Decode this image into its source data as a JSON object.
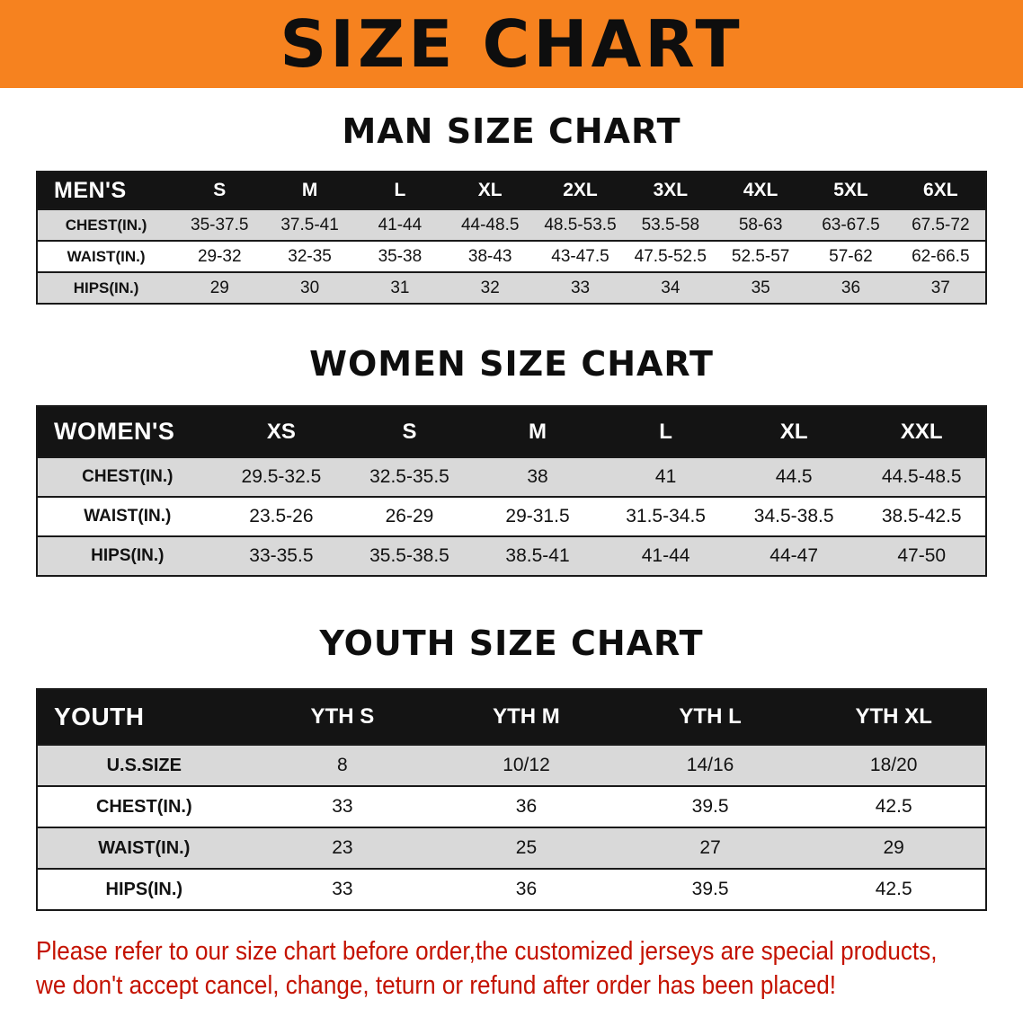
{
  "banner": {
    "title": "SIZE CHART"
  },
  "sections": [
    {
      "id": "men",
      "heading": "MAN SIZE CHART",
      "table": {
        "header": [
          "MEN'S",
          "S",
          "M",
          "L",
          "XL",
          "2XL",
          "3XL",
          "4XL",
          "5XL",
          "6XL"
        ],
        "rows": [
          [
            "CHEST(IN.)",
            "35-37.5",
            "37.5-41",
            "41-44",
            "44-48.5",
            "48.5-53.5",
            "53.5-58",
            "58-63",
            "63-67.5",
            "67.5-72"
          ],
          [
            "WAIST(IN.)",
            "29-32",
            "32-35",
            "35-38",
            "38-43",
            "43-47.5",
            "47.5-52.5",
            "52.5-57",
            "57-62",
            "62-66.5"
          ],
          [
            "HIPS(IN.)",
            "29",
            "30",
            "31",
            "32",
            "33",
            "34",
            "35",
            "36",
            "37"
          ]
        ]
      }
    },
    {
      "id": "women",
      "heading": "WOMEN SIZE CHART",
      "table": {
        "header": [
          "WOMEN'S",
          "XS",
          "S",
          "M",
          "L",
          "XL",
          "XXL"
        ],
        "rows": [
          [
            "CHEST(IN.)",
            "29.5-32.5",
            "32.5-35.5",
            "38",
            "41",
            "44.5",
            "44.5-48.5"
          ],
          [
            "WAIST(IN.)",
            "23.5-26",
            "26-29",
            "29-31.5",
            "31.5-34.5",
            "34.5-38.5",
            "38.5-42.5"
          ],
          [
            "HIPS(IN.)",
            "33-35.5",
            "35.5-38.5",
            "38.5-41",
            "41-44",
            "44-47",
            "47-50"
          ]
        ]
      }
    },
    {
      "id": "youth",
      "heading": "YOUTH SIZE CHART",
      "table": {
        "header": [
          "YOUTH",
          "YTH S",
          "YTH M",
          "YTH L",
          "YTH XL"
        ],
        "rows": [
          [
            "U.S.SIZE",
            "8",
            "10/12",
            "14/16",
            "18/20"
          ],
          [
            "CHEST(IN.)",
            "33",
            "36",
            "39.5",
            "42.5"
          ],
          [
            "WAIST(IN.)",
            "23",
            "25",
            "27",
            "29"
          ],
          [
            "HIPS(IN.)",
            "33",
            "36",
            "39.5",
            "42.5"
          ]
        ]
      }
    }
  ],
  "footer": {
    "line1": "Please refer to our size chart before order,the customized jerseys are special products,",
    "line2": "we don't accept cancel, change, teturn or refund after order has been placed!"
  },
  "colors": {
    "banner_orange": "#f6821f",
    "header_black": "#141414",
    "row_gray": "#d9d9d9",
    "note_red": "#c41200"
  }
}
